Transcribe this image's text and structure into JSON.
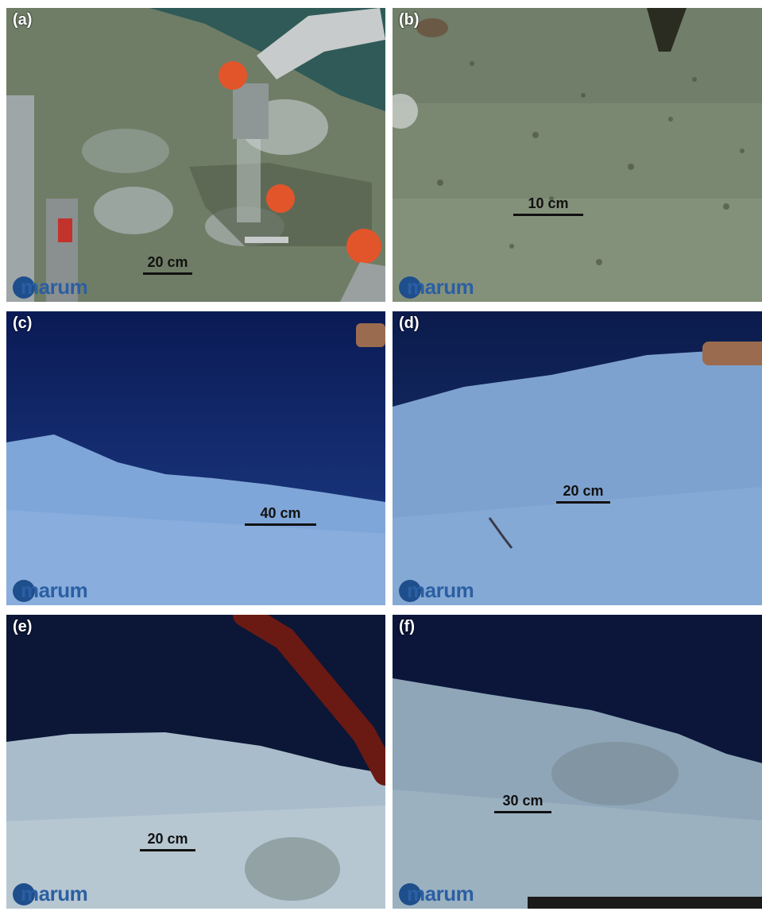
{
  "figure": {
    "panels": [
      {
        "label": "(a)",
        "scale": "20 cm",
        "logo": "marum",
        "colors": {
          "sky": "#2f5a58",
          "floor": "#7f8a70"
        }
      },
      {
        "label": "(b)",
        "scale": "10 cm",
        "logo": "marum",
        "colors": {
          "sky": "#6f7c68",
          "floor": "#84917a"
        }
      },
      {
        "label": "(c)",
        "scale": "40 cm",
        "logo": "marum",
        "colors": {
          "sky": "#0a1b56",
          "floor": "#7fa6d8"
        }
      },
      {
        "label": "(d)",
        "scale": "20 cm",
        "logo": "marum",
        "colors": {
          "sky": "#0c1d4f",
          "floor": "#7ea2cf"
        }
      },
      {
        "label": "(e)",
        "scale": "20 cm",
        "logo": "marum",
        "colors": {
          "sky": "#0c1636",
          "floor": "#a9bccc"
        }
      },
      {
        "label": "(f)",
        "scale": "30 cm",
        "logo": "marum",
        "colors": {
          "sky": "#0b163a",
          "floor": "#8ea6b8"
        }
      }
    ]
  }
}
